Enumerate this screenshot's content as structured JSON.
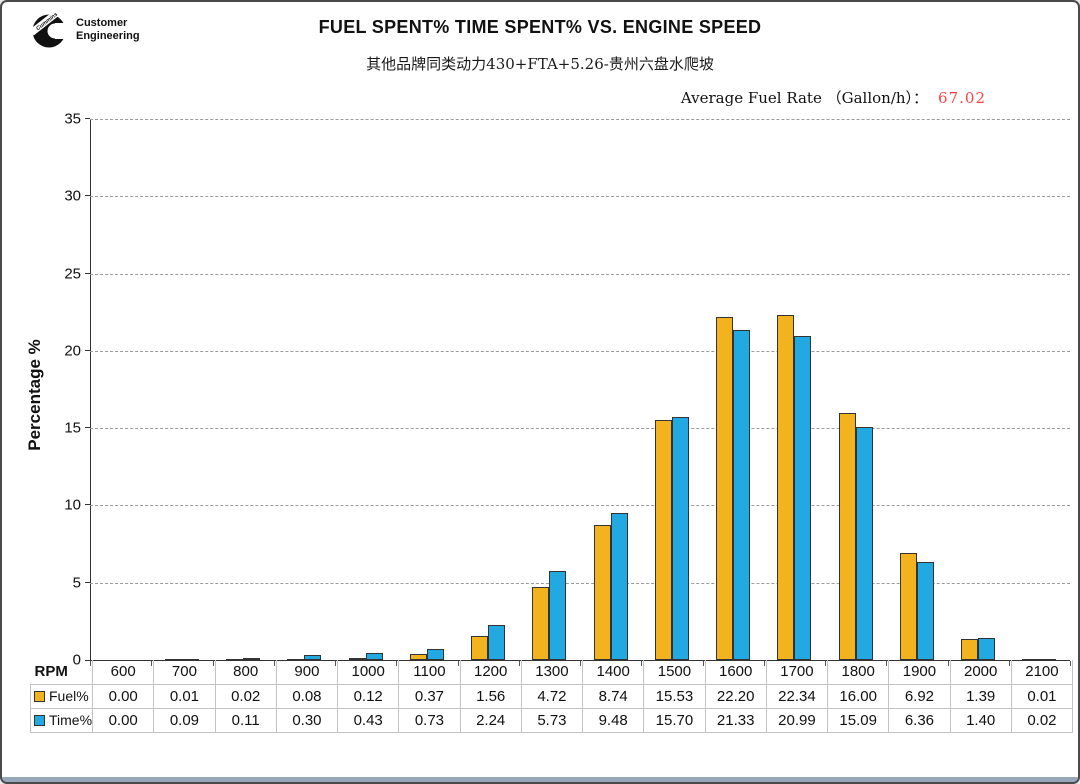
{
  "logo": {
    "brand": "Cummins",
    "line1": "Customer",
    "line2": "Engineering"
  },
  "header": {
    "title": "FUEL SPENT% TIME SPENT% VS. ENGINE SPEED",
    "subtitle": "其他品牌同类动力430+FTA+5.26-贵州六盘水爬坡"
  },
  "annotation": {
    "label": "Average Fuel Rate （Gallon/h）：",
    "value": "67.02"
  },
  "colors": {
    "fuel_bar": "#F2B31E",
    "time_bar": "#23A9E1",
    "bar_border": "#333333",
    "accent_red": "#FF4343",
    "grid": "#9C9C9C",
    "table_border": "#C3C3C3"
  },
  "chart_data": {
    "type": "bar",
    "title": "FUEL SPENT% TIME SPENT% VS. ENGINE SPEED",
    "subtitle": "其他品牌同类动力430+FTA+5.26-贵州六盘水爬坡",
    "xlabel": "RPM",
    "ylabel": "Percentage %",
    "ylim": [
      0,
      35
    ],
    "ytick_step": 5,
    "grid": "horizontal dashed",
    "legend_position": "attached data table, left column",
    "annotation": {
      "label": "Average Fuel Rate (Gallon/h)",
      "value": 67.02
    },
    "categories": [
      "600",
      "700",
      "800",
      "900",
      "1000",
      "1100",
      "1200",
      "1300",
      "1400",
      "1500",
      "1600",
      "1700",
      "1800",
      "1900",
      "2000",
      "2100"
    ],
    "series": [
      {
        "name": "Fuel%",
        "color": "#F2B31E",
        "values": [
          0.0,
          0.01,
          0.02,
          0.08,
          0.12,
          0.37,
          1.56,
          4.72,
          8.74,
          15.53,
          22.2,
          22.34,
          16.0,
          6.92,
          1.39,
          0.01
        ]
      },
      {
        "name": "Time%",
        "color": "#23A9E1",
        "values": [
          0.0,
          0.09,
          0.11,
          0.3,
          0.43,
          0.73,
          2.24,
          5.73,
          9.48,
          15.7,
          21.33,
          20.99,
          15.09,
          6.36,
          1.4,
          0.02
        ]
      }
    ]
  }
}
